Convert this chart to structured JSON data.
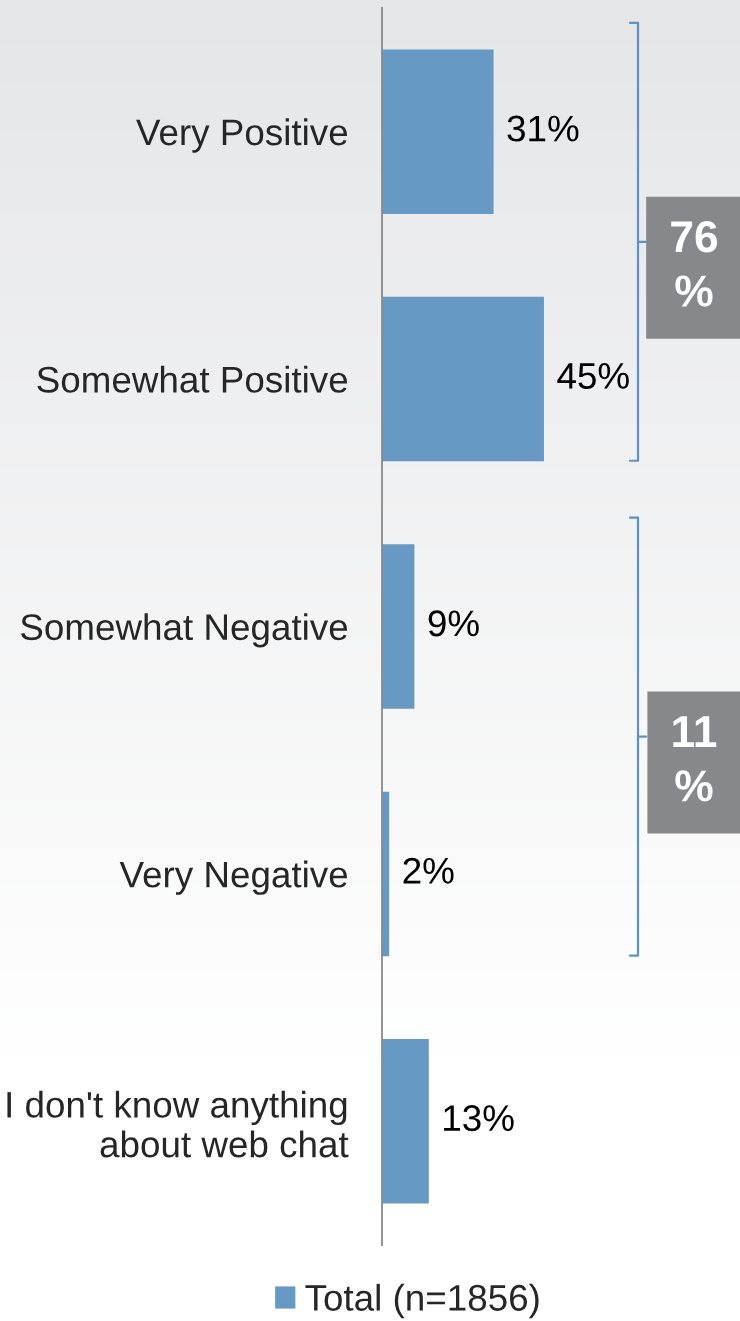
{
  "chart_data": {
    "type": "bar",
    "orientation": "horizontal",
    "categories": [
      "Very Positive",
      "Somewhat Positive",
      "Somewhat Negative",
      "Very Negative",
      "I don't know anything\nabout web chat"
    ],
    "series": [
      {
        "name": "Total (n=1856)",
        "color": "#6699c3",
        "values": [
          31,
          45,
          9,
          2,
          13
        ],
        "value_labels": [
          "31%",
          "45%",
          "9%",
          "2%",
          "13%"
        ]
      }
    ],
    "annotations": [
      "76\n%",
      "11\n%"
    ],
    "legend": "bottom",
    "tick_labels": "y"
  }
}
